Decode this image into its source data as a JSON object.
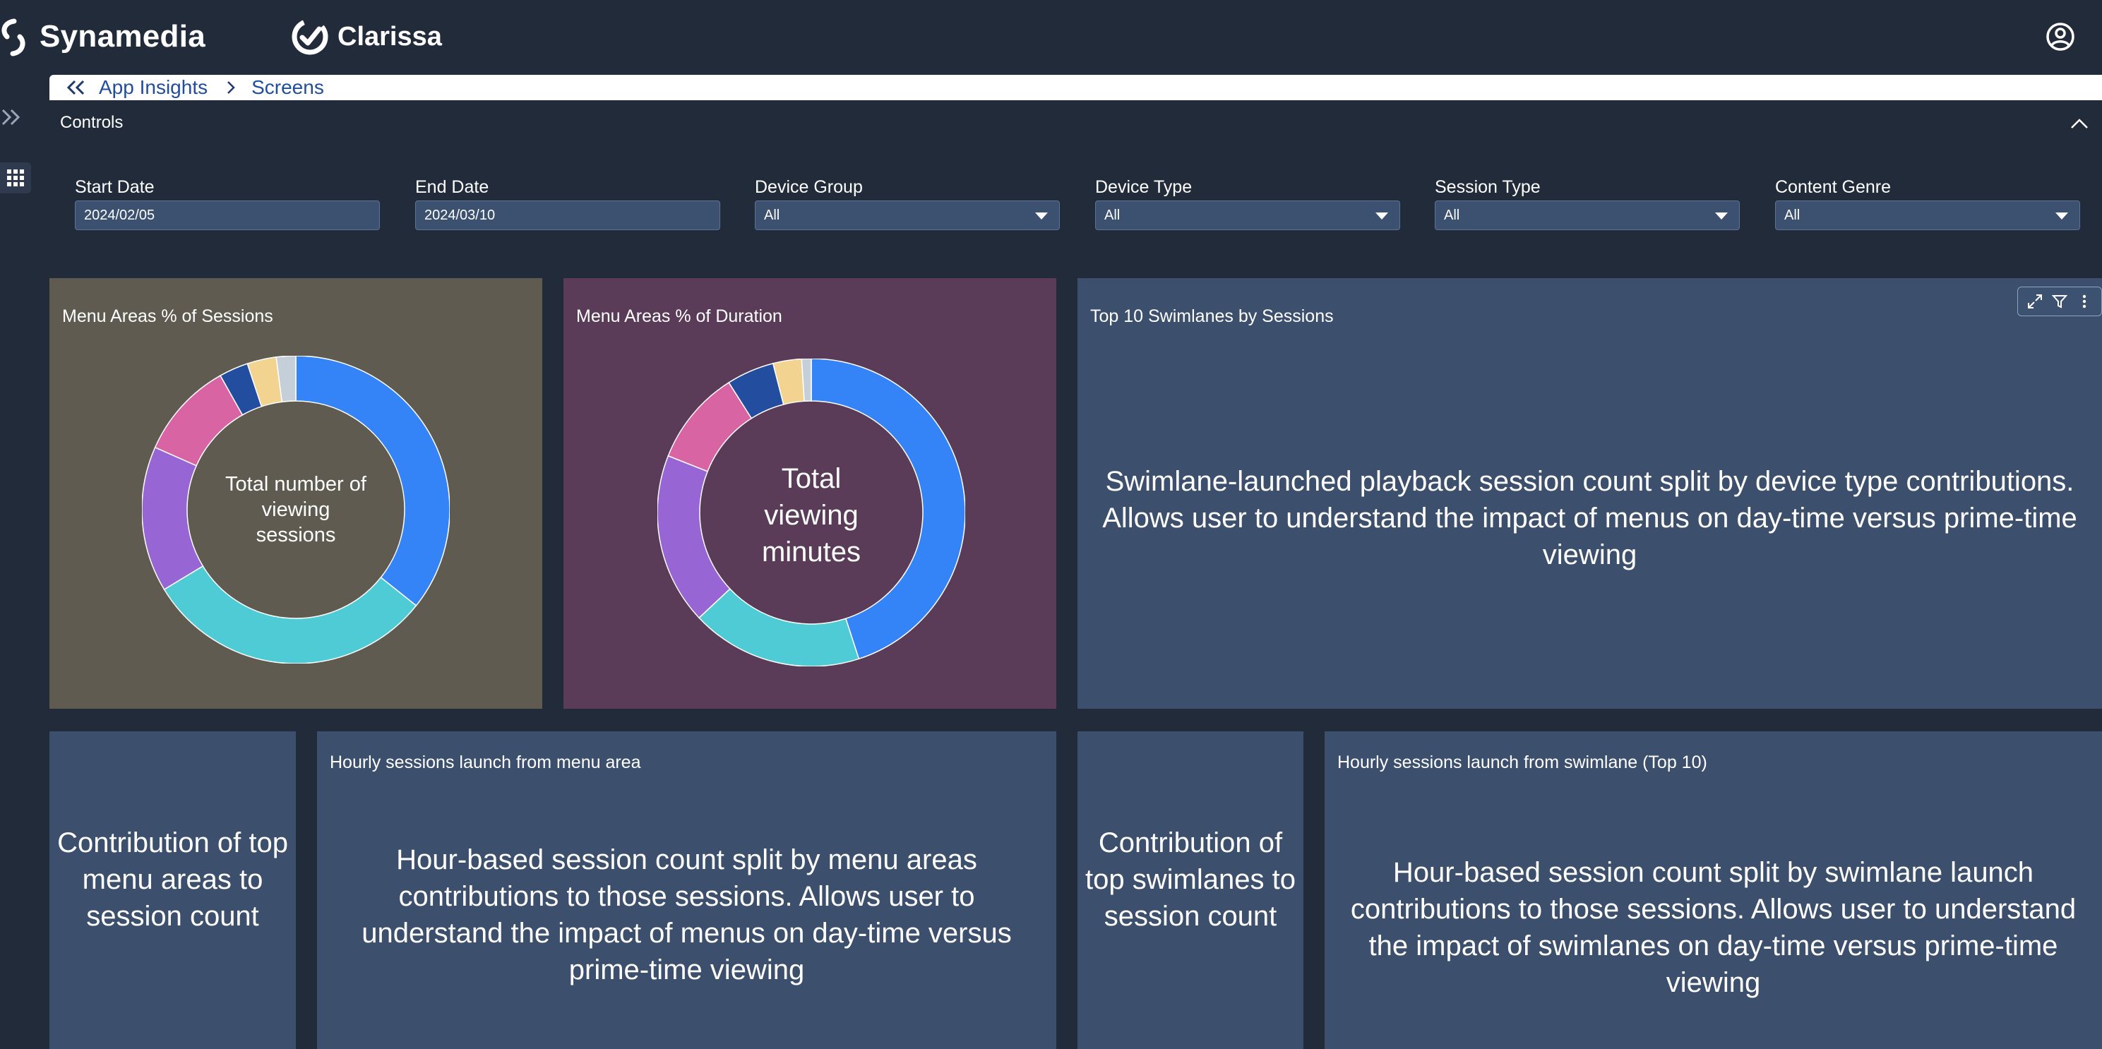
{
  "header": {
    "brand": "Synamedia",
    "product": "Clarissa",
    "user_icon": "user-circle-icon"
  },
  "breadcrumb": {
    "items": [
      "App Insights",
      "Screens"
    ]
  },
  "controls": {
    "title": "Controls",
    "fields": [
      {
        "label": "Start Date",
        "value": "2024/02/05"
      },
      {
        "label": "End Date",
        "value": "2024/03/10"
      },
      {
        "label": "Device Group",
        "value": "All"
      },
      {
        "label": "Device Type",
        "value": "All"
      },
      {
        "label": "Session Type",
        "value": "All"
      },
      {
        "label": "Content Genre",
        "value": "All"
      }
    ]
  },
  "panels": {
    "menu_sessions": {
      "title": "Menu Areas % of Sessions",
      "center_text": "Total number of viewing sessions",
      "bg": "#5f5b50"
    },
    "menu_duration": {
      "title": "Menu Areas % of Duration",
      "center_text": "Total viewing minutes",
      "bg": "#5a3b58"
    },
    "top_swimlanes": {
      "title": "Top 10 Swimlanes by Sessions",
      "body": "Swimlane-launched playback session count split by device type contributions.  Allows user to understand the impact of menus on day-time versus prime-time viewing",
      "bg": "#3c4f6c"
    },
    "contrib_menu": {
      "body": "Contribution of top menu areas to session count",
      "bg": "#3c4f6c"
    },
    "hourly_menu": {
      "title": "Hourly sessions launch from menu area",
      "body": "Hour-based session count split by menu areas contributions to those sessions. Allows user to understand the impact of menus on day-time versus prime-time viewing",
      "bg": "#3c4f6c"
    },
    "contrib_swimlanes": {
      "body": "Contribution of top swimlanes to session count",
      "bg": "#3c4f6c"
    },
    "hourly_swimlane": {
      "title": "Hourly sessions launch from swimlane (Top 10)",
      "body": "Hour-based session count split by swimlane launch contributions to those sessions. Allows user to understand the impact of swimlanes on day-time versus prime-time viewing",
      "bg": "#3c4f6c"
    }
  },
  "donuts": {
    "sessions": [
      {
        "color": "#3484f7",
        "value": 35
      },
      {
        "color": "#4ecbd4",
        "value": 30
      },
      {
        "color": "#9765d4",
        "value": 15
      },
      {
        "color": "#d864a4",
        "value": 10
      },
      {
        "color": "#234ea0",
        "value": 3
      },
      {
        "color": "#f2d38f",
        "value": 3
      },
      {
        "color": "#c5cfd9",
        "value": 2
      }
    ],
    "duration": [
      {
        "color": "#3484f7",
        "value": 45
      },
      {
        "color": "#4ecbd4",
        "value": 18
      },
      {
        "color": "#9765d4",
        "value": 18
      },
      {
        "color": "#d864a4",
        "value": 10
      },
      {
        "color": "#234ea0",
        "value": 5
      },
      {
        "color": "#f2d38f",
        "value": 3
      },
      {
        "color": "#c5cfd9",
        "value": 1
      }
    ]
  },
  "toolbar_icons": [
    "expand-icon",
    "filter-icon",
    "more-vertical-icon"
  ]
}
